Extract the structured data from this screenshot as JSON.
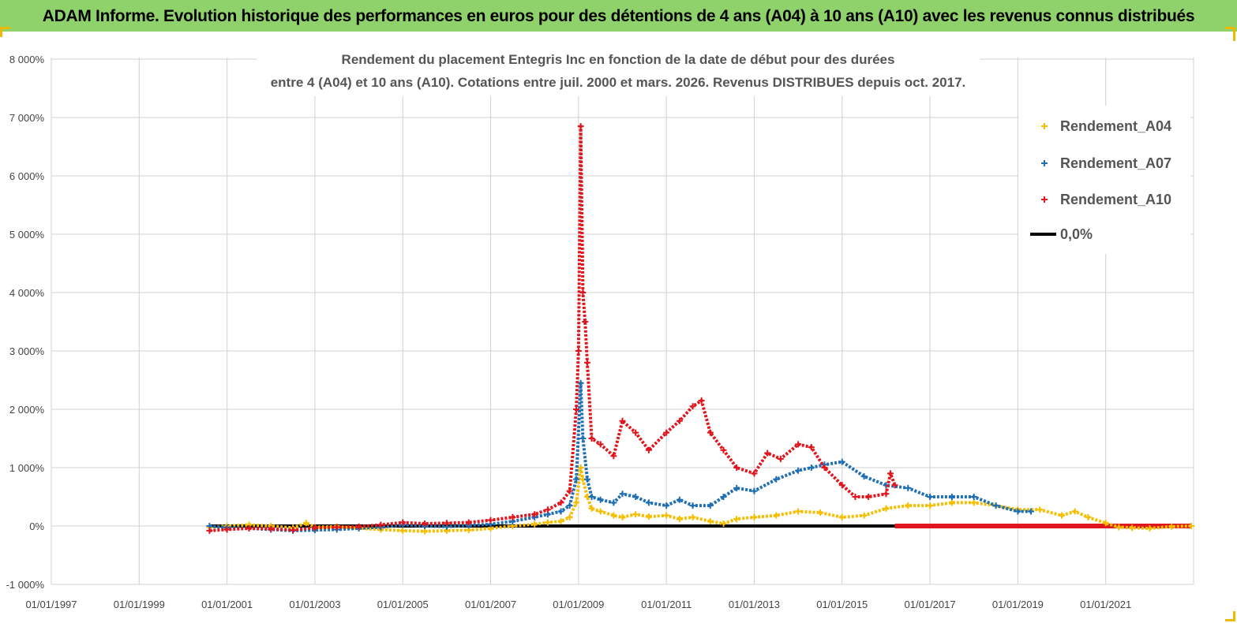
{
  "header": {
    "title": "ADAM Informe. Evolution historique des performances en euros pour des détentions de 4 ans (A04) à 10 ans (A10) avec les revenus connus distribués"
  },
  "colors": {
    "banner": "#8fd16b",
    "a04": "#f5be00",
    "a07": "#1f6fb5",
    "a10": "#e0161e",
    "zero": "#000000",
    "grid": "#d0d0d0"
  },
  "chart_data": {
    "type": "scatter",
    "title_line1": "Rendement du placement Entegris Inc en fonction de la date de début pour des durées",
    "title_line2": "entre 4 (A04) et 10 ans (A10). Cotations entre juil. 2000 et mars. 2026. Revenus DISTRIBUES depuis oct. 2017.",
    "xlabel": "",
    "ylabel": "",
    "x_range": [
      "01/01/1997",
      "31/12/2022"
    ],
    "ylim": [
      -1000,
      8000
    ],
    "y_ticks": [
      -1000,
      0,
      1000,
      2000,
      3000,
      4000,
      5000,
      6000,
      7000,
      8000
    ],
    "y_tick_labels": [
      "-1 000%",
      "0%",
      "1 000%",
      "2 000%",
      "3 000%",
      "4 000%",
      "5 000%",
      "6 000%",
      "7 000%",
      "8 000%"
    ],
    "x_tick_labels": [
      "01/01/1997",
      "01/01/1999",
      "01/01/2001",
      "01/01/2003",
      "01/01/2005",
      "01/01/2007",
      "01/01/2009",
      "01/01/2011",
      "01/01/2013",
      "01/01/2015",
      "01/01/2017",
      "01/01/2019",
      "01/01/2021"
    ],
    "x_ticks": [
      1997,
      1999,
      2001,
      2003,
      2005,
      2007,
      2009,
      2011,
      2013,
      2015,
      2017,
      2019,
      2021
    ],
    "grid": true,
    "legend_position": "top-right",
    "series": [
      {
        "name": "Rendement_A04",
        "marker": "+",
        "x": [
          2000.6,
          2001.0,
          2001.5,
          2002.0,
          2002.5,
          2002.8,
          2003.0,
          2003.5,
          2004.0,
          2004.5,
          2005.0,
          2005.5,
          2006.0,
          2006.5,
          2007.0,
          2007.5,
          2008.0,
          2008.3,
          2008.6,
          2008.8,
          2008.95,
          2009.05,
          2009.1,
          2009.2,
          2009.3,
          2009.5,
          2009.8,
          2010.0,
          2010.3,
          2010.6,
          2011.0,
          2011.3,
          2011.6,
          2012.0,
          2012.3,
          2012.6,
          2013.0,
          2013.5,
          2014.0,
          2014.5,
          2015.0,
          2015.5,
          2016.0,
          2016.5,
          2017.0,
          2017.5,
          2018.0,
          2018.5,
          2019.0,
          2019.5,
          2020.0,
          2020.3,
          2020.6,
          2021.0,
          2021.3,
          2021.6,
          2022.0,
          2022.5,
          2022.95
        ],
        "y": [
          -20,
          0,
          20,
          0,
          -30,
          50,
          -20,
          -10,
          -40,
          -60,
          -80,
          -90,
          -80,
          -70,
          -40,
          0,
          30,
          60,
          80,
          150,
          400,
          1000,
          800,
          500,
          300,
          250,
          180,
          150,
          200,
          160,
          180,
          120,
          150,
          80,
          40,
          120,
          150,
          180,
          250,
          230,
          150,
          180,
          300,
          350,
          350,
          400,
          400,
          350,
          280,
          280,
          180,
          250,
          150,
          50,
          -20,
          -30,
          -40,
          -10,
          0
        ]
      },
      {
        "name": "Rendement_A07",
        "marker": "+",
        "x": [
          2000.6,
          2001.0,
          2001.5,
          2002.0,
          2002.5,
          2003.0,
          2003.5,
          2004.0,
          2004.5,
          2005.0,
          2005.5,
          2006.0,
          2006.5,
          2007.0,
          2007.5,
          2008.0,
          2008.3,
          2008.6,
          2008.8,
          2008.95,
          2009.05,
          2009.1,
          2009.2,
          2009.3,
          2009.5,
          2009.8,
          2010.0,
          2010.3,
          2010.6,
          2011.0,
          2011.3,
          2011.6,
          2012.0,
          2012.3,
          2012.6,
          2013.0,
          2013.5,
          2014.0,
          2014.3,
          2014.6,
          2015.0,
          2015.5,
          2016.0,
          2016.5,
          2017.0,
          2017.5,
          2018.0,
          2018.5,
          2019.0,
          2019.3
        ],
        "y": [
          0,
          -30,
          -40,
          -60,
          -80,
          -70,
          -60,
          -40,
          -20,
          20,
          0,
          -10,
          10,
          30,
          80,
          150,
          200,
          250,
          350,
          800,
          2450,
          1500,
          800,
          500,
          450,
          400,
          550,
          500,
          400,
          350,
          450,
          350,
          350,
          500,
          650,
          600,
          800,
          950,
          1000,
          1050,
          1100,
          850,
          700,
          650,
          500,
          500,
          500,
          350,
          250,
          250
        ]
      },
      {
        "name": "Rendement_A10",
        "marker": "+",
        "x": [
          2000.6,
          2001.0,
          2001.5,
          2002.0,
          2002.5,
          2003.0,
          2003.5,
          2004.0,
          2004.5,
          2005.0,
          2005.5,
          2006.0,
          2006.5,
          2007.0,
          2007.5,
          2008.0,
          2008.3,
          2008.6,
          2008.8,
          2008.95,
          2009.0,
          2009.05,
          2009.1,
          2009.15,
          2009.2,
          2009.3,
          2009.5,
          2009.8,
          2010.0,
          2010.3,
          2010.6,
          2011.0,
          2011.3,
          2011.6,
          2011.8,
          2012.0,
          2012.3,
          2012.6,
          2013.0,
          2013.3,
          2013.6,
          2014.0,
          2014.3,
          2014.6,
          2015.0,
          2015.3,
          2015.6,
          2016.0,
          2016.1,
          2016.2
        ],
        "y": [
          -80,
          -60,
          -40,
          -50,
          -70,
          -30,
          -20,
          -10,
          20,
          60,
          40,
          50,
          60,
          100,
          150,
          200,
          280,
          400,
          600,
          2000,
          3000,
          6850,
          4000,
          3500,
          2800,
          1500,
          1400,
          1200,
          1800,
          1600,
          1300,
          1600,
          1800,
          2050,
          2150,
          1600,
          1300,
          1000,
          900,
          1250,
          1150,
          1400,
          1350,
          1000,
          700,
          500,
          500,
          550,
          900,
          700
        ]
      },
      {
        "name": "0,0%",
        "type": "line",
        "x": [
          2000.6,
          2016.2
        ],
        "y": [
          0,
          0
        ]
      }
    ],
    "a10_zero_segment": {
      "x": [
        2016.2,
        2022.95
      ],
      "y": [
        0,
        0
      ]
    }
  }
}
